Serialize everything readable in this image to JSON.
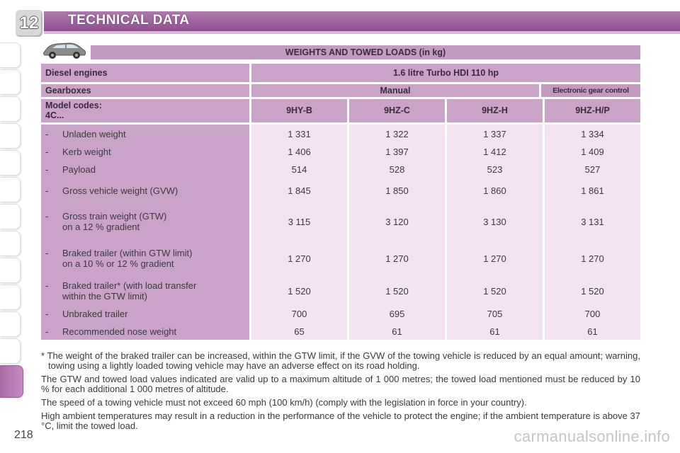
{
  "header": {
    "chapter": "12",
    "title": "TECHNICAL DATA"
  },
  "colors": {
    "header": "#9a5a98",
    "label_fill": "#c9a4c8",
    "value_fill": "#f4e4f2",
    "banner": "#c49ac2"
  },
  "icons": {
    "car": "car-icon"
  },
  "table": {
    "banner": "WEIGHTS AND TOWED LOADS (in kg)",
    "engine_label": "Diesel engines",
    "engine_value": "1.6 litre Turbo HDI 110 hp",
    "gearbox_label": "Gearboxes",
    "gearbox_manual": "Manual",
    "gearbox_egc": "Electronic gear control",
    "model_label_1": "Model codes:",
    "model_label_2": "4C...",
    "model_codes": [
      "9HY-B",
      "9HZ-C",
      "9HZ-H",
      "9HZ-H/P"
    ],
    "rows": [
      {
        "dash": "-",
        "label": "Unladen weight",
        "label2": "",
        "values": [
          "1 331",
          "1 322",
          "1 337",
          "1 334"
        ]
      },
      {
        "dash": "-",
        "label": "Kerb weight",
        "label2": "",
        "values": [
          "1 406",
          "1 397",
          "1 412",
          "1 409"
        ]
      },
      {
        "dash": "-",
        "label": "Payload",
        "label2": "",
        "values": [
          "514",
          "528",
          "523",
          "527"
        ]
      },
      {
        "dash": "-",
        "label": "Gross vehicle weight (GVW)",
        "label2": "",
        "values": [
          "1 845",
          "1 850",
          "1 860",
          "1 861"
        ]
      },
      {
        "dash": "-",
        "label": "Gross train weight (GTW)",
        "label2": "on a 12 % gradient",
        "values": [
          "3 115",
          "3 120",
          "3 130",
          "3 131"
        ]
      },
      {
        "dash": "-",
        "label": "Braked trailer (within GTW limit)",
        "label2": "on a 10 % or 12 % gradient",
        "values": [
          "1 270",
          "1 270",
          "1 270",
          "1 270"
        ]
      },
      {
        "dash": "-",
        "label": "Braked trailer* (with load transfer",
        "label2": "within the GTW limit)",
        "values": [
          "1 520",
          "1 520",
          "1 520",
          "1 520"
        ]
      },
      {
        "dash": "-",
        "label": "Unbraked trailer",
        "label2": "",
        "values": [
          "700",
          "695",
          "705",
          "700"
        ]
      },
      {
        "dash": "-",
        "label": "Recommended nose weight",
        "label2": "",
        "values": [
          "65",
          "61",
          "61",
          "61"
        ]
      }
    ]
  },
  "notes": {
    "footnote": "* The weight of the braked trailer can be increased, within the GTW limit, if the GVW of the towing vehicle is reduced by an equal amount; warning, towing using a lightly loaded towing vehicle may have an adverse effect on its road holding.",
    "p1": "The GTW and towed load values indicated are valid up to a maximum altitude of 1 000 metres; the towed load mentioned must be reduced by 10 % for each additional 1 000 metres of altitude.",
    "p2": "The speed of a towing vehicle must not exceed 60 mph (100 km/h) (comply with the legislation in force in your country).",
    "p3": "High ambient temperatures may result in a reduction in the performance of the vehicle to protect the engine; if the ambient temperature is above 37 °C, limit the towed load."
  },
  "page_number": "218",
  "watermark": "carmanualsonline.info"
}
